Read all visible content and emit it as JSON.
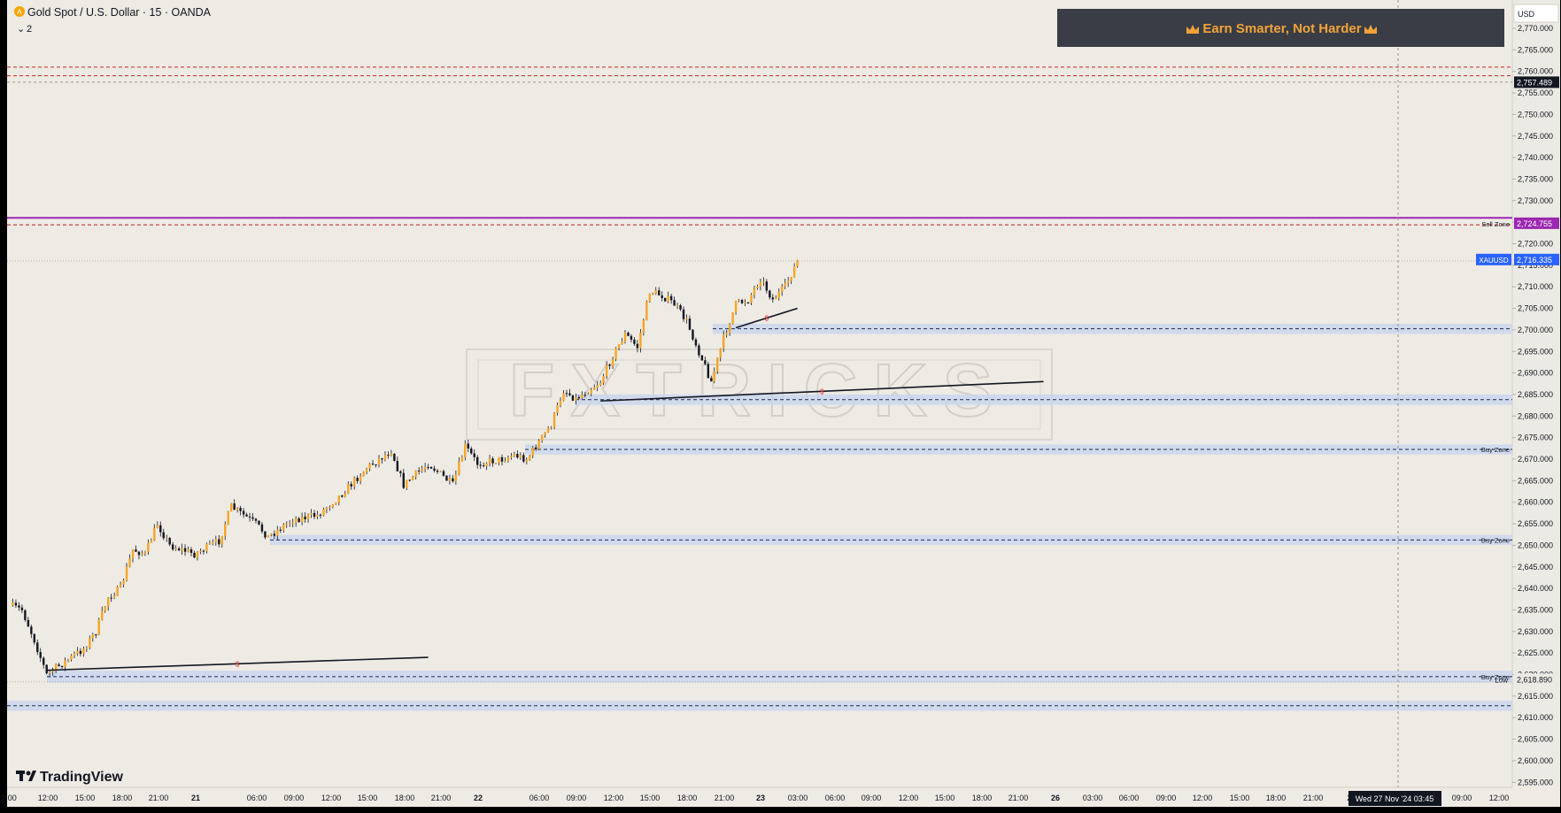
{
  "header": {
    "symbol_title": "Gold Spot / U.S. Dollar · 15 · OANDA",
    "indicator_count": "2",
    "collapse_glyph": "⌄",
    "logo_icon": "gold-coin-icon"
  },
  "promo_banner": {
    "text": "Earn Smarter, Not Harder",
    "icon": "crown-icon"
  },
  "watermark_text": "FXTRICKS",
  "branding": {
    "text": "TradingView",
    "icon": "tradingview-logo-icon"
  },
  "price_axis": {
    "currency": "USD",
    "ticks": [
      "2,770.000",
      "2,765.000",
      "2,760.000",
      "2,755.000",
      "2,750.000",
      "2,745.000",
      "2,740.000",
      "2,735.000",
      "2,730.000",
      "2,725.000",
      "2,720.000",
      "2,715.000",
      "2,710.000",
      "2,705.000",
      "2,700.000",
      "2,695.000",
      "2,690.000",
      "2,685.000",
      "2,680.000",
      "2,675.000",
      "2,670.000",
      "2,665.000",
      "2,660.000",
      "2,655.000",
      "2,650.000",
      "2,645.000",
      "2,640.000",
      "2,635.000",
      "2,630.000",
      "2,625.000",
      "2,620.000",
      "2,615.000",
      "2,610.000",
      "2,605.000",
      "2,600.000",
      "2,595.000"
    ],
    "badges": [
      {
        "key": "crosshair",
        "text": "2,757.489",
        "value": 2757.489,
        "bg": "#131722"
      },
      {
        "key": "sell_level",
        "text": "2,724.755",
        "value": 2724.755,
        "bg": "#9c27b0"
      },
      {
        "key": "high",
        "text": "2,716.400",
        "value": 2716.4,
        "bg": "#eceae4",
        "label": "High"
      },
      {
        "key": "last",
        "text": "2,716.335",
        "value": 2716.335,
        "bg": "#2962ff",
        "label": "XAUUSD"
      },
      {
        "key": "low",
        "text": "2,618.890",
        "value": 2618.89,
        "bg": "#eceae4",
        "label": "Low"
      }
    ]
  },
  "time_axis": {
    "labels": [
      "9:00",
      "12:00",
      "15:00",
      "18:00",
      "21:00",
      "21",
      "06:00",
      "09:00",
      "12:00",
      "15:00",
      "18:00",
      "21:00",
      "22",
      "06:00",
      "09:00",
      "12:00",
      "15:00",
      "18:00",
      "21:00",
      "23",
      "03:00",
      "06:00",
      "09:00",
      "12:00",
      "15:00",
      "18:00",
      "21:00",
      "26",
      "03:00",
      "06:00",
      "09:00",
      "12:00",
      "15:00",
      "18:00",
      "21:00",
      "2",
      "09:00",
      "12:00"
    ],
    "crosshair_label": "Wed 27 Nov '24   03:45"
  },
  "chart_data": {
    "type": "candlestick",
    "symbol": "XAUUSD",
    "timeframe": "15",
    "ylim": [
      2591,
      2776
    ],
    "close_path": [
      {
        "time": "20 Nov 09:00",
        "price": 2636
      },
      {
        "time": "20 Nov 10:00",
        "price": 2635
      },
      {
        "time": "20 Nov 11:00",
        "price": 2628
      },
      {
        "time": "20 Nov 12:00",
        "price": 2620
      },
      {
        "time": "20 Nov 13:00",
        "price": 2622
      },
      {
        "time": "20 Nov 15:00",
        "price": 2626
      },
      {
        "time": "20 Nov 16:00",
        "price": 2630
      },
      {
        "time": "20 Nov 17:00",
        "price": 2638
      },
      {
        "time": "20 Nov 18:00",
        "price": 2640
      },
      {
        "time": "20 Nov 19:00",
        "price": 2649
      },
      {
        "time": "20 Nov 20:00",
        "price": 2648
      },
      {
        "time": "20 Nov 21:00",
        "price": 2655
      },
      {
        "time": "20 Nov 22:00",
        "price": 2650
      },
      {
        "time": "21 Nov 00:00",
        "price": 2648
      },
      {
        "time": "21 Nov 02:00",
        "price": 2651
      },
      {
        "time": "21 Nov 03:00",
        "price": 2659
      },
      {
        "time": "21 Nov 05:00",
        "price": 2655
      },
      {
        "time": "21 Nov 06:00",
        "price": 2652
      },
      {
        "time": "21 Nov 08:00",
        "price": 2656
      },
      {
        "time": "21 Nov 10:00",
        "price": 2657
      },
      {
        "time": "21 Nov 12:00",
        "price": 2662
      },
      {
        "time": "21 Nov 14:00",
        "price": 2668
      },
      {
        "time": "21 Nov 16:00",
        "price": 2672
      },
      {
        "time": "21 Nov 17:00",
        "price": 2664
      },
      {
        "time": "21 Nov 19:00",
        "price": 2669
      },
      {
        "time": "21 Nov 21:00",
        "price": 2664
      },
      {
        "time": "21 Nov 22:00",
        "price": 2673
      },
      {
        "time": "21 Nov 23:00",
        "price": 2669
      },
      {
        "time": "22 Nov 01:00",
        "price": 2670
      },
      {
        "time": "22 Nov 02:00",
        "price": 2671
      },
      {
        "time": "22 Nov 03:00",
        "price": 2670
      },
      {
        "time": "22 Nov 05:00",
        "price": 2678
      },
      {
        "time": "22 Nov 06:00",
        "price": 2686
      },
      {
        "time": "22 Nov 07:00",
        "price": 2684
      },
      {
        "time": "22 Nov 09:00",
        "price": 2688
      },
      {
        "time": "22 Nov 10:00",
        "price": 2694
      },
      {
        "time": "22 Nov 11:00",
        "price": 2699
      },
      {
        "time": "22 Nov 12:00",
        "price": 2696
      },
      {
        "time": "22 Nov 13:00",
        "price": 2709
      },
      {
        "time": "22 Nov 14:00",
        "price": 2708
      },
      {
        "time": "22 Nov 15:00",
        "price": 2706
      },
      {
        "time": "22 Nov 16:00",
        "price": 2702
      },
      {
        "time": "22 Nov 17:00",
        "price": 2695
      },
      {
        "time": "22 Nov 18:00",
        "price": 2688
      },
      {
        "time": "22 Nov 19:00",
        "price": 2698
      },
      {
        "time": "22 Nov 20:00",
        "price": 2706
      },
      {
        "time": "22 Nov 21:00",
        "price": 2707
      },
      {
        "time": "22 Nov 22:00",
        "price": 2712
      },
      {
        "time": "22 Nov 23:00",
        "price": 2707
      },
      {
        "time": "23 Nov 00:00",
        "price": 2710
      },
      {
        "time": "23 Nov 01:00",
        "price": 2716
      }
    ],
    "zones": [
      {
        "label": "Sell Zone",
        "price_high": 2726,
        "price_low": 2725,
        "color": "#9c27b0"
      },
      {
        "label": "",
        "price_high": 2701,
        "price_low": 2699.5,
        "color": "#5b7fd1"
      },
      {
        "label": "",
        "price_high": 2684.6,
        "price_low": 2683,
        "color": "#5b7fd1"
      },
      {
        "label": "Buy Zone",
        "price_high": 2673,
        "price_low": 2671.5,
        "color": "#5b7fd1"
      },
      {
        "label": "Buy Zone",
        "price_high": 2652,
        "price_low": 2650.5,
        "color": "#5b7fd1"
      },
      {
        "label": "Buy Zone",
        "price_high": 2620.5,
        "price_low": 2618.5,
        "color": "#5b7fd1"
      },
      {
        "label": "",
        "price_high": 2613.5,
        "price_low": 2612,
        "color": "#5b7fd1"
      }
    ],
    "resistance_lines": [
      2761,
      2759
    ],
    "trendlines": [
      {
        "from": {
          "time": "20 Nov 12:00",
          "price": 2621
        },
        "to": {
          "time": "21 Nov 19:00",
          "price": 2624
        },
        "marker": "$"
      },
      {
        "from": {
          "time": "22 Nov 09:00",
          "price": 2683.5
        },
        "to": {
          "time": "23 Nov 21:00",
          "price": 2688
        },
        "marker": "$"
      },
      {
        "from": {
          "time": "22 Nov 20:00",
          "price": 2700.5
        },
        "to": {
          "time": "23 Nov 01:00",
          "price": 2705
        },
        "marker": "$"
      }
    ],
    "crosshair": {
      "time": "27 Nov 03:45",
      "price": 2757.489
    },
    "grid": false,
    "legend": "none"
  }
}
